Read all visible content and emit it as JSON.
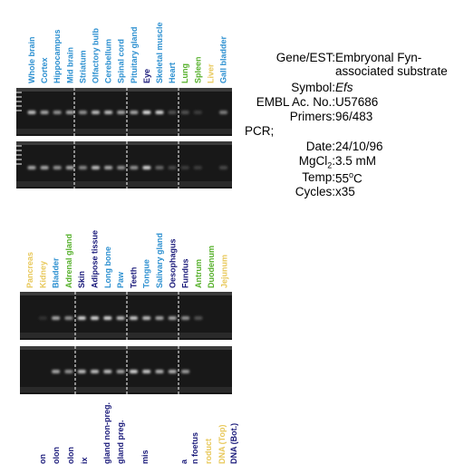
{
  "panels": [
    {
      "lanes": [
        {
          "label": "Whole brain",
          "color": "#2b8fd0"
        },
        {
          "label": "Cortex",
          "color": "#2b8fd0"
        },
        {
          "label": "Hippocampus",
          "color": "#2b8fd0"
        },
        {
          "label": "Mid brain",
          "color": "#2b8fd0"
        },
        {
          "label": "Striatum",
          "color": "#2b8fd0"
        },
        {
          "label": "Olfactory bulb",
          "color": "#2b8fd0"
        },
        {
          "label": "Cerebellum",
          "color": "#2b8fd0"
        },
        {
          "label": "Spinal cord",
          "color": "#2b8fd0"
        },
        {
          "label": "Pituitary gland",
          "color": "#2b8fd0"
        },
        {
          "label": "Eye",
          "color": "#1a1a7a"
        },
        {
          "label": "Skeletal muscle",
          "color": "#2b8fd0"
        },
        {
          "label": "Heart",
          "color": "#2b8fd0"
        },
        {
          "label": "Lung",
          "color": "#55b02a"
        },
        {
          "label": "Spleen",
          "color": "#55b02a"
        },
        {
          "label": "Liver",
          "color": "#e8c85a"
        },
        {
          "label": "Gall bladder",
          "color": "#2b8fd0"
        }
      ]
    },
    {
      "lanes": [
        {
          "label": "Pancreas",
          "color": "#e8c85a"
        },
        {
          "label": "Kidney",
          "color": "#e8c85a"
        },
        {
          "label": "Bladder",
          "color": "#2b8fd0"
        },
        {
          "label": "Adrenal gland",
          "color": "#55b02a"
        },
        {
          "label": "Skin",
          "color": "#1a1a7a"
        },
        {
          "label": "Adipose tissue",
          "color": "#1a1a7a"
        },
        {
          "label": "Long bone",
          "color": "#2b8fd0"
        },
        {
          "label": "Paw",
          "color": "#2b8fd0"
        },
        {
          "label": "Teeth",
          "color": "#1a1a7a"
        },
        {
          "label": "Tongue",
          "color": "#2b8fd0"
        },
        {
          "label": "Salivary gland",
          "color": "#2b8fd0"
        },
        {
          "label": "Oesophagus",
          "color": "#1a1a7a"
        },
        {
          "label": "Fundus",
          "color": "#1a1a7a"
        },
        {
          "label": "Antrum",
          "color": "#55b02a"
        },
        {
          "label": "Duodenum",
          "color": "#55b02a"
        },
        {
          "label": "Jejunum",
          "color": "#e8c85a"
        }
      ]
    },
    {
      "lanes": [
        {
          "label": "on",
          "color": "#1a1a7a"
        },
        {
          "label": "olon",
          "color": "#1a1a7a"
        },
        {
          "label": "olon",
          "color": "#1a1a7a"
        },
        {
          "label": "ix",
          "color": "#1a1a7a"
        },
        {
          "label": "gland non-preg.",
          "color": "#1a1a7a"
        },
        {
          "label": "gland preg.",
          "color": "#1a1a7a"
        },
        {
          "label": "mis",
          "color": "#1a1a7a"
        },
        {
          "label": "a",
          "color": "#1a1a7a"
        },
        {
          "label": "n foetus",
          "color": "#1a1a7a"
        },
        {
          "label": "roduct",
          "color": "#e8c85a"
        },
        {
          "label": "DNA (Top)",
          "color": "#e8c85a"
        },
        {
          "label": "DNA (Bot.)",
          "color": "#1a1a7a"
        }
      ]
    }
  ],
  "info": {
    "gene_label": "Gene/EST:",
    "gene": "Embryonal Fyn-associated substrate",
    "symbol_label": "Symbol:",
    "symbol": "Efs",
    "embl_label": "EMBL Ac. No.:",
    "embl": "U57686",
    "primers_label": "Primers:",
    "primers": "96/483",
    "pcr_label": "PCR;",
    "date_label": "Date:",
    "date": "24/10/96",
    "mg_label": "MgCl",
    "mg_sub": "2",
    "mg_colon": ":",
    "mg": "3.5 mM",
    "temp_label": "Temp:",
    "temp": "55",
    "temp_sup": "o",
    "temp_unit": "C",
    "cycles_label": "Cycles:",
    "cycles": "x35"
  }
}
